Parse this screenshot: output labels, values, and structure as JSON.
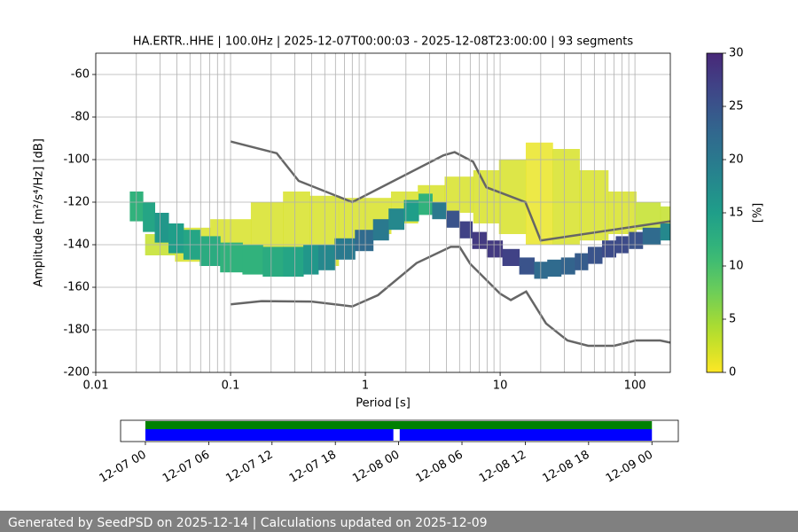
{
  "chart_data": [
    {
      "type": "psd",
      "title": "HA.ERTR..HHE | 100.0Hz | 2025-12-07T00:00:03 - 2025-12-08T23:00:00 | 93 segments",
      "x_label": "Period [s]",
      "y_label": "Amplitude [m²/s⁴/Hz] [dB]",
      "xscale": "log",
      "xlim": [
        0.01,
        183
      ],
      "ylim": [
        -200,
        -50
      ],
      "xticks": [
        0.01,
        0.1,
        1,
        10,
        100
      ],
      "xminorticks": [
        0.02,
        0.03,
        0.04,
        0.05,
        0.06,
        0.07,
        0.08,
        0.09,
        0.2,
        0.3,
        0.4,
        0.5,
        0.6,
        0.7,
        0.8,
        0.9,
        2,
        3,
        4,
        5,
        6,
        7,
        8,
        9,
        20,
        30,
        40,
        50,
        60,
        70,
        80,
        90
      ],
      "yticks": [
        -200,
        -180,
        -160,
        -140,
        -120,
        -100,
        -80,
        -60
      ],
      "grid": true,
      "colormap": "viridis_r",
      "colorbar": {
        "label": "[%]",
        "lim": [
          0,
          30
        ],
        "ticks": [
          0,
          5,
          10,
          15,
          20,
          25,
          30
        ]
      },
      "density": [
        {
          "x": [
            0.03,
            0.05,
            0.1,
            0.2,
            0.3,
            0.5,
            0.8,
            1.2,
            2,
            3,
            5,
            8,
            12,
            20,
            30,
            50,
            80,
            130,
            183
          ],
          "low": [
            -145,
            -148,
            -150,
            -152,
            -152,
            -150,
            -140,
            -135,
            -130,
            -125,
            -125,
            -130,
            -135,
            -140,
            -140,
            -138,
            -135,
            -133,
            -130
          ],
          "high": [
            -135,
            -132,
            -128,
            -120,
            -115,
            -117,
            -118,
            -118,
            -115,
            -112,
            -108,
            -105,
            -100,
            -92,
            -95,
            -105,
            -115,
            -120,
            -122
          ],
          "peak": [
            3,
            2,
            2,
            2,
            2,
            2,
            2,
            2,
            2,
            2,
            2,
            2,
            2,
            1,
            2,
            2,
            2,
            3,
            3
          ]
        },
        {
          "x": [
            0.02,
            0.025,
            0.03,
            0.04,
            0.05,
            0.07,
            0.1,
            0.15,
            0.2,
            0.3,
            0.4,
            0.5,
            0.7,
            1,
            1.3,
            1.7,
            2.2,
            2.8,
            3.5,
            4.5,
            5.5,
            7,
            9,
            12,
            16,
            20,
            25,
            32,
            40,
            50,
            65,
            80,
            100,
            130,
            183
          ],
          "low": [
            -129,
            -134,
            -139,
            -144,
            -147,
            -150,
            -153,
            -154,
            -155,
            -155,
            -154,
            -152,
            -147,
            -143,
            -138,
            -133,
            -129,
            -126,
            -128,
            -132,
            -137,
            -142,
            -146,
            -150,
            -154,
            -156,
            -155,
            -154,
            -152,
            -149,
            -146,
            -144,
            -142,
            -140,
            -138
          ],
          "high": [
            -115,
            -120,
            -125,
            -130,
            -133,
            -136,
            -139,
            -140,
            -141,
            -141,
            -140,
            -140,
            -137,
            -133,
            -128,
            -123,
            -119,
            -116,
            -120,
            -124,
            -129,
            -134,
            -138,
            -142,
            -146,
            -148,
            -147,
            -146,
            -144,
            -141,
            -138,
            -136,
            -134,
            -132,
            -130
          ],
          "peak": [
            12,
            14,
            16,
            15,
            14,
            13,
            12,
            12,
            13,
            14,
            16,
            18,
            20,
            22,
            20,
            18,
            15,
            12,
            20,
            25,
            27,
            28,
            28,
            27,
            25,
            22,
            22,
            23,
            24,
            25,
            26,
            26,
            25,
            22,
            18
          ]
        }
      ],
      "series": [
        {
          "color": "#666666",
          "x": [
            0.1,
            0.22,
            0.32,
            0.8,
            3.8,
            4.6,
            6.3,
            7.9,
            15.4,
            20,
            183
          ],
          "values": [
            -91.5,
            -97,
            -110,
            -120,
            -98,
            -96.5,
            -101,
            -113,
            -120,
            -138,
            -129
          ]
        },
        {
          "color": "#666666",
          "x": [
            0.1,
            0.17,
            0.4,
            0.8,
            1.24,
            2.4,
            4.3,
            5,
            6,
            10,
            12,
            15.6,
            21.9,
            31.6,
            45,
            70,
            101,
            154,
            183
          ],
          "values": [
            -168,
            -166.5,
            -166.7,
            -169,
            -163.7,
            -148.6,
            -141,
            -141,
            -149,
            -163,
            -166,
            -162,
            -177,
            -185,
            -187.5,
            -187.5,
            -185,
            -185,
            -186
          ]
        }
      ]
    },
    {
      "type": "timeline",
      "xlim": [
        -2.35,
        50.5
      ],
      "xticks": [
        {
          "value": 0,
          "label": "12-07 00"
        },
        {
          "value": 6,
          "label": "12-07 06"
        },
        {
          "value": 12,
          "label": "12-07 12"
        },
        {
          "value": 18,
          "label": "12-07 18"
        },
        {
          "value": 24,
          "label": "12-08 00"
        },
        {
          "value": 30,
          "label": "12-08 06"
        },
        {
          "value": 36,
          "label": "12-08 12"
        },
        {
          "value": 42,
          "label": "12-08 18"
        },
        {
          "value": 48,
          "label": "12-09 00"
        }
      ],
      "series": [
        {
          "color": "#008000",
          "segments": [
            [
              0,
              48
            ]
          ]
        },
        {
          "color": "#0000ff",
          "segments": [
            [
              0,
              23.5
            ],
            [
              24.1,
              48
            ]
          ]
        }
      ]
    }
  ],
  "footer": "Generated by SeedPSD on 2025-12-14 | Calculations updated on 2025-12-09"
}
